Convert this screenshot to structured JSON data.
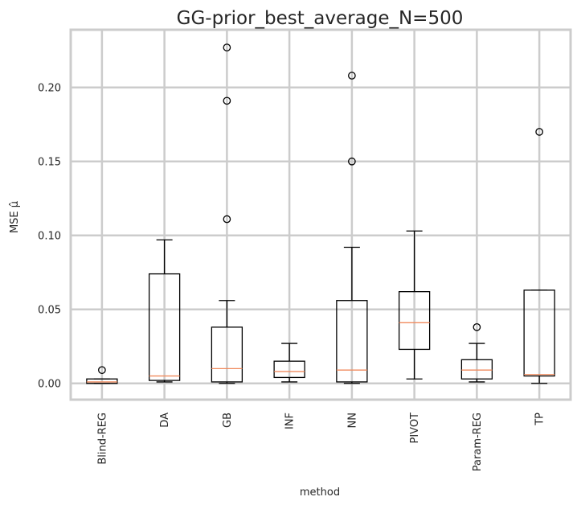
{
  "chart_data": {
    "type": "box",
    "title": "GG-prior_best_average_N=500",
    "xlabel": "method",
    "ylabel": "MSE μ̂",
    "ylim": [
      -0.011,
      0.239
    ],
    "yticks": [
      "0.00",
      "0.05",
      "0.10",
      "0.15",
      "0.20"
    ],
    "grid": true,
    "colors": {
      "box": "#000000",
      "median": "#f08a5d",
      "grid": "#cccccc",
      "frame": "#cccccc"
    },
    "series": [
      {
        "category": "Blind-REG",
        "whislo": 0.0,
        "q1": 0.0,
        "median": 0.001,
        "q3": 0.003,
        "whishi": 0.003,
        "fliers": [
          0.009
        ]
      },
      {
        "category": "DA",
        "whislo": 0.001,
        "q1": 0.002,
        "median": 0.005,
        "q3": 0.074,
        "whishi": 0.097,
        "fliers": []
      },
      {
        "category": "GB",
        "whislo": 0.0,
        "q1": 0.001,
        "median": 0.01,
        "q3": 0.038,
        "whishi": 0.056,
        "fliers": [
          0.111,
          0.191,
          0.227
        ]
      },
      {
        "category": "INF",
        "whislo": 0.001,
        "q1": 0.004,
        "median": 0.008,
        "q3": 0.015,
        "whishi": 0.027,
        "fliers": []
      },
      {
        "category": "NN",
        "whislo": 0.0,
        "q1": 0.001,
        "median": 0.009,
        "q3": 0.056,
        "whishi": 0.092,
        "fliers": [
          0.15,
          0.208
        ]
      },
      {
        "category": "PIVOT",
        "whislo": 0.003,
        "q1": 0.023,
        "median": 0.041,
        "q3": 0.062,
        "whishi": 0.103,
        "fliers": []
      },
      {
        "category": "Param-REG",
        "whislo": 0.001,
        "q1": 0.003,
        "median": 0.009,
        "q3": 0.016,
        "whishi": 0.027,
        "fliers": [
          0.038
        ]
      },
      {
        "category": "TP",
        "whislo": 0.0,
        "q1": 0.005,
        "median": 0.006,
        "q3": 0.063,
        "whishi": 0.063,
        "fliers": [
          0.17
        ]
      }
    ]
  }
}
